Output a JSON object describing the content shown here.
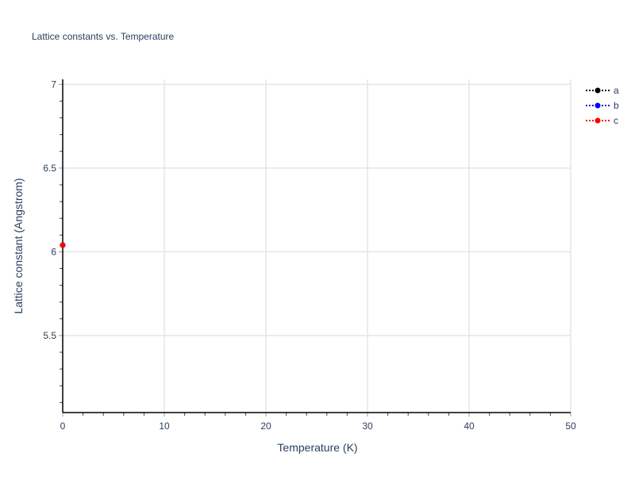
{
  "chart_data": {
    "type": "line",
    "title": "Lattice constants vs. Temperature",
    "xlabel": "Temperature (K)",
    "ylabel": "Lattice constant (Angstrom)",
    "xlim": [
      0,
      50
    ],
    "ylim": [
      5.04,
      7.03
    ],
    "x_ticks": [
      0,
      10,
      20,
      30,
      40,
      50
    ],
    "x_tick_labels": [
      "0",
      "10",
      "20",
      "30",
      "40",
      "50"
    ],
    "y_ticks": [
      5.5,
      6,
      6.5,
      7
    ],
    "y_tick_labels": [
      "5.5",
      "6",
      "6.5",
      "7"
    ],
    "grid": true,
    "legend_position": "top-right",
    "series": [
      {
        "name": "a",
        "color": "#000000",
        "line_style": "dotted",
        "x": [
          0
        ],
        "y": [
          6.04
        ]
      },
      {
        "name": "b",
        "color": "#0000ff",
        "line_style": "dotted",
        "x": [
          0
        ],
        "y": [
          6.04
        ]
      },
      {
        "name": "c",
        "color": "#ff0000",
        "line_style": "dotted",
        "x": [
          0
        ],
        "y": [
          6.04
        ]
      }
    ]
  }
}
